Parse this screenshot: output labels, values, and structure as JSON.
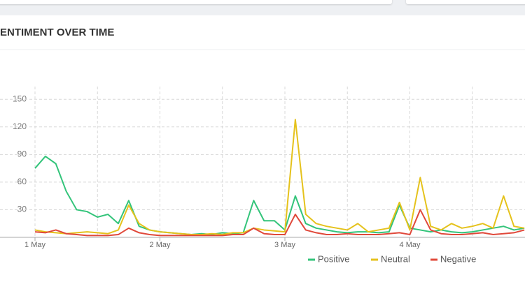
{
  "chart_data": {
    "type": "line",
    "title": "ENTIMENT OVER TIME",
    "categories": [
      "1 May",
      null,
      null,
      null,
      null,
      null,
      null,
      null,
      null,
      null,
      null,
      null,
      "2 May",
      null,
      null,
      null,
      null,
      null,
      null,
      null,
      null,
      null,
      null,
      null,
      "3 May",
      null,
      null,
      null,
      null,
      null,
      null,
      null,
      null,
      null,
      null,
      null,
      "4 May",
      null,
      null,
      null,
      null,
      null,
      null,
      null,
      null,
      null,
      null,
      null
    ],
    "series": [
      {
        "name": "Positive",
        "color": "#33c47a",
        "values": [
          75,
          88,
          80,
          50,
          30,
          28,
          22,
          25,
          15,
          40,
          12,
          8,
          6,
          5,
          4,
          3,
          4,
          3,
          5,
          4,
          5,
          40,
          18,
          18,
          8,
          45,
          15,
          10,
          8,
          6,
          5,
          6,
          6,
          5,
          6,
          35,
          10,
          8,
          6,
          8,
          6,
          5,
          6,
          8,
          10,
          12,
          8,
          10
        ]
      },
      {
        "name": "Neutral",
        "color": "#e5c21c",
        "values": [
          8,
          6,
          5,
          4,
          5,
          6,
          5,
          4,
          8,
          35,
          15,
          8,
          6,
          5,
          4,
          3,
          3,
          4,
          3,
          5,
          5,
          10,
          8,
          7,
          6,
          128,
          25,
          15,
          12,
          10,
          8,
          15,
          6,
          8,
          10,
          38,
          8,
          65,
          12,
          8,
          15,
          10,
          12,
          15,
          10,
          45,
          12,
          10
        ]
      },
      {
        "name": "Negative",
        "color": "#e0483a",
        "values": [
          6,
          5,
          8,
          4,
          3,
          2,
          2,
          2,
          3,
          10,
          5,
          3,
          2,
          2,
          2,
          2,
          2,
          2,
          2,
          3,
          3,
          10,
          4,
          3,
          3,
          25,
          8,
          5,
          3,
          3,
          4,
          3,
          3,
          3,
          4,
          5,
          3,
          30,
          8,
          4,
          3,
          3,
          4,
          5,
          3,
          4,
          5,
          8
        ]
      }
    ],
    "ylim": [
      0,
      160
    ],
    "yticks": [
      30,
      60,
      90,
      120,
      150
    ],
    "grid": true,
    "legend": "bottom"
  }
}
